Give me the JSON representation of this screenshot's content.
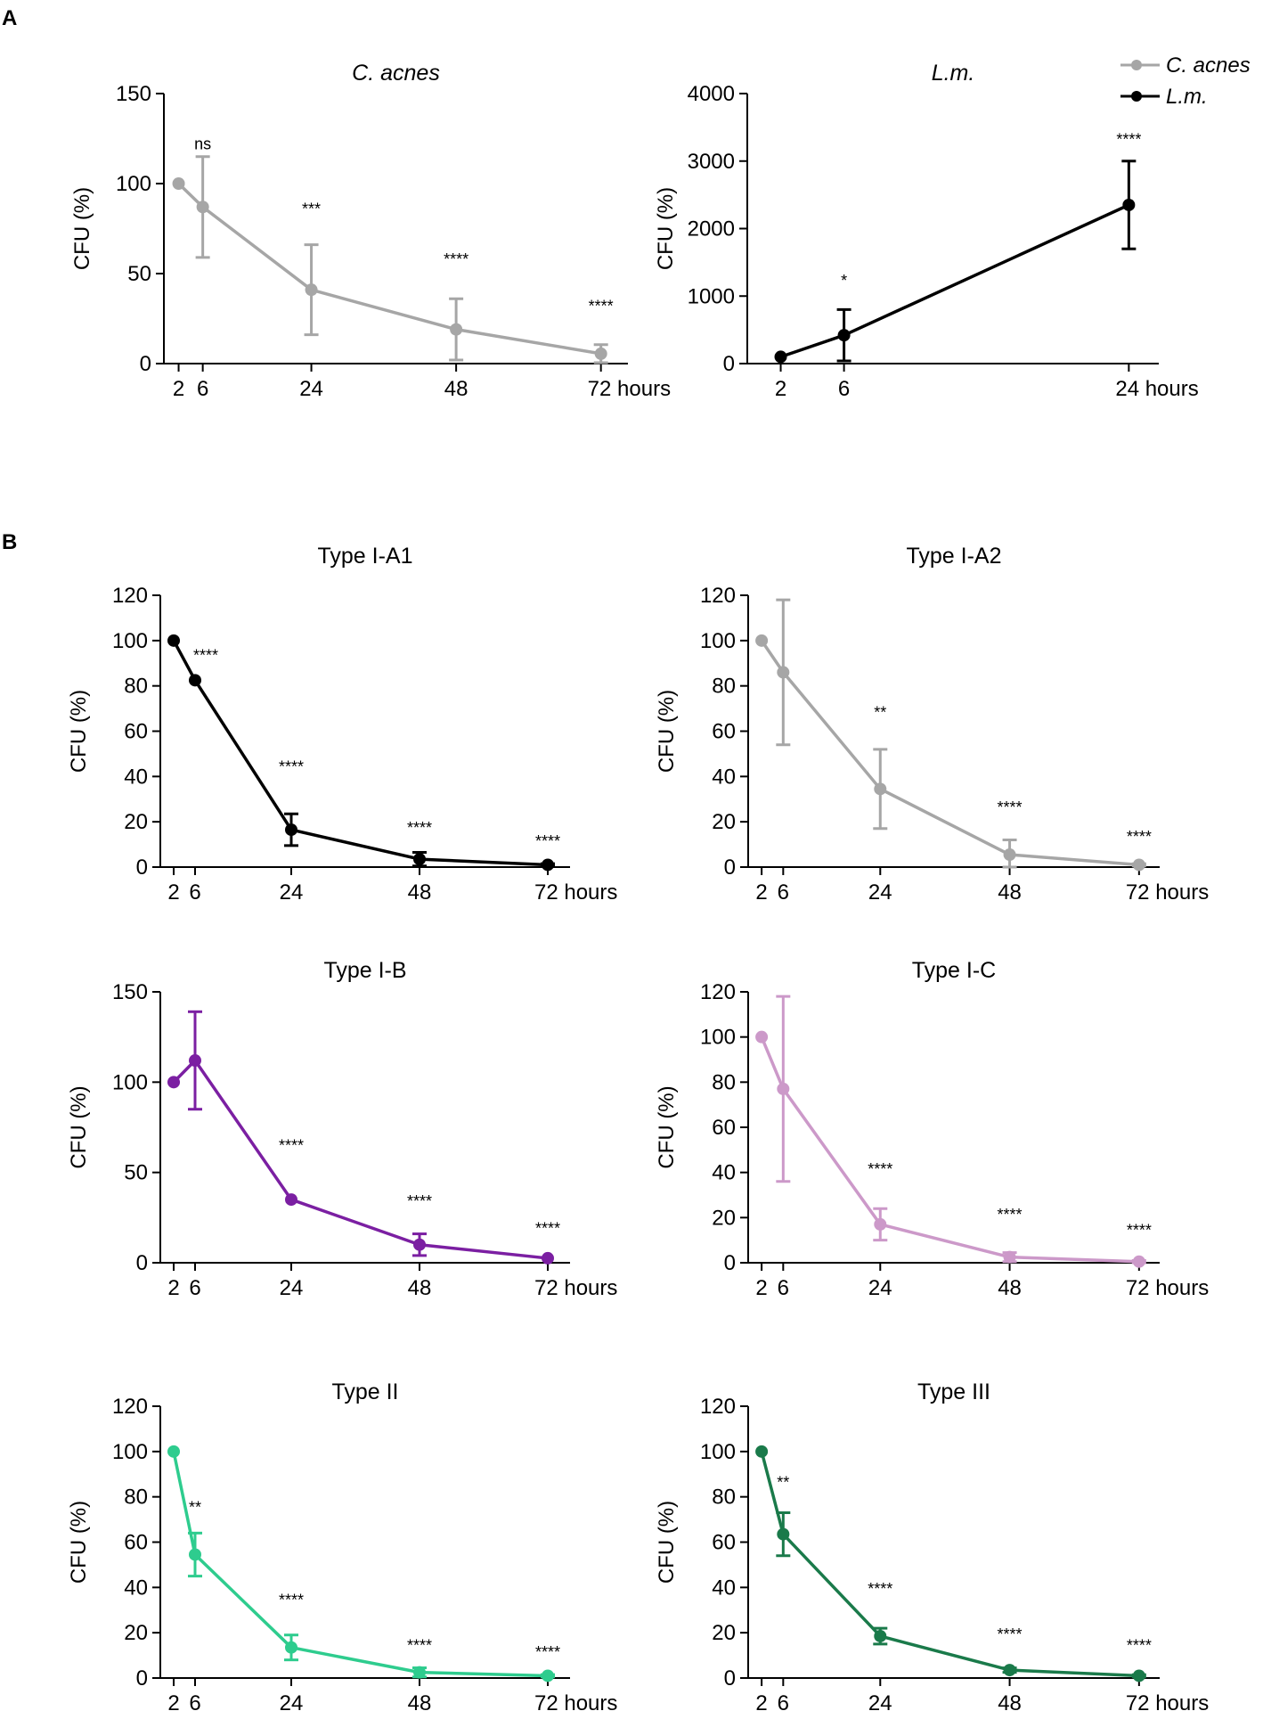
{
  "panel_labels": [
    "A",
    "B"
  ],
  "legend": {
    "entries": [
      {
        "label": "C. acnes",
        "color": "#a6a6a6"
      },
      {
        "label": "L.m.",
        "color": "#000000"
      }
    ]
  },
  "chart_data": [
    {
      "type": "line",
      "panel": "A",
      "title": "C. acnes",
      "title_italic": true,
      "ylabel": "CFU (%)",
      "xlabel": "",
      "xlim": [
        0,
        75
      ],
      "ylim": [
        0,
        150
      ],
      "x": [
        2,
        6,
        24,
        48,
        72
      ],
      "xticks": [
        2,
        6,
        24,
        48,
        72
      ],
      "xtick_labels": [
        "2",
        "6",
        "24",
        "48",
        "72 hours"
      ],
      "yticks": [
        0,
        50,
        100,
        150
      ],
      "ytick_labels": [
        "0",
        "50",
        "100",
        "150"
      ],
      "series": [
        {
          "name": "C. acnes",
          "color": "#a6a6a6",
          "values": [
            100,
            87,
            41,
            19,
            5.5
          ],
          "errors": [
            0,
            28,
            25,
            17,
            5
          ]
        }
      ],
      "annotations": [
        {
          "x": 6,
          "y": 119,
          "text": "ns"
        },
        {
          "x": 24,
          "y": 83,
          "text": "***"
        },
        {
          "x": 48,
          "y": 55,
          "text": "****"
        },
        {
          "x": 72,
          "y": 29,
          "text": "****"
        }
      ]
    },
    {
      "type": "line",
      "panel": "A",
      "title": "L.m.",
      "title_italic": true,
      "ylabel": "CFU (%)",
      "xlabel": "",
      "xlim": [
        0,
        25.5
      ],
      "ylim": [
        0,
        4000
      ],
      "x": [
        2,
        6,
        24
      ],
      "xticks": [
        2,
        6,
        24
      ],
      "xtick_labels": [
        "2",
        "6",
        "24 hours"
      ],
      "yticks": [
        0,
        1000,
        2000,
        3000,
        4000
      ],
      "ytick_labels": [
        "0",
        "1000",
        "2000",
        "3000",
        "4000"
      ],
      "series": [
        {
          "name": "L.m.",
          "color": "#000000",
          "values": [
            100,
            420,
            2350
          ],
          "errors": [
            0,
            380,
            650
          ]
        }
      ],
      "annotations": [
        {
          "x": 6,
          "y": 1150,
          "text": "*"
        },
        {
          "x": 24,
          "y": 3240,
          "text": "****"
        }
      ]
    },
    {
      "type": "line",
      "panel": "B",
      "title": "Type I-A1",
      "title_italic": false,
      "ylabel": "CFU (%)",
      "xlabel": "",
      "xlim": [
        0,
        75
      ],
      "ylim": [
        0,
        120
      ],
      "x": [
        2,
        6,
        24,
        48,
        72
      ],
      "xticks": [
        2,
        6,
        24,
        48,
        72
      ],
      "xtick_labels": [
        "2",
        "6",
        "24",
        "48",
        "72 hours"
      ],
      "yticks": [
        0,
        20,
        40,
        60,
        80,
        100,
        120
      ],
      "ytick_labels": [
        "0",
        "20",
        "40",
        "60",
        "80",
        "100",
        "120"
      ],
      "series": [
        {
          "name": "Type I-A1",
          "color": "#000000",
          "values": [
            100,
            82.5,
            16.5,
            3.5,
            1
          ],
          "errors": [
            0,
            0,
            7,
            3,
            0.5
          ]
        }
      ],
      "annotations": [
        {
          "x": 8,
          "y": 91,
          "text": "****"
        },
        {
          "x": 24,
          "y": 42,
          "text": "****"
        },
        {
          "x": 48,
          "y": 15,
          "text": "****"
        },
        {
          "x": 72,
          "y": 9,
          "text": "****"
        }
      ]
    },
    {
      "type": "line",
      "panel": "B",
      "title": "Type I-A2",
      "title_italic": false,
      "ylabel": "CFU (%)",
      "xlabel": "",
      "xlim": [
        0,
        75
      ],
      "ylim": [
        0,
        120
      ],
      "x": [
        2,
        6,
        24,
        48,
        72
      ],
      "xticks": [
        2,
        6,
        24,
        48,
        72
      ],
      "xtick_labels": [
        "2",
        "6",
        "24",
        "48",
        "72 hours"
      ],
      "yticks": [
        0,
        20,
        40,
        60,
        80,
        100,
        120
      ],
      "ytick_labels": [
        "0",
        "20",
        "40",
        "60",
        "80",
        "100",
        "120"
      ],
      "series": [
        {
          "name": "Type I-A2",
          "color": "#a6a6a6",
          "values": [
            100,
            86,
            34.5,
            5.5,
            1
          ],
          "errors": [
            0,
            32,
            17.5,
            6.5,
            0.5
          ]
        }
      ],
      "annotations": [
        {
          "x": 24,
          "y": 66,
          "text": "**"
        },
        {
          "x": 48,
          "y": 24,
          "text": "****"
        },
        {
          "x": 72,
          "y": 11,
          "text": "****"
        }
      ]
    },
    {
      "type": "line",
      "panel": "B",
      "title": "Type I-B",
      "title_italic": false,
      "ylabel": "CFU (%)",
      "xlabel": "",
      "xlim": [
        0,
        75
      ],
      "ylim": [
        0,
        150
      ],
      "x": [
        2,
        6,
        24,
        48,
        72
      ],
      "xticks": [
        2,
        6,
        24,
        48,
        72
      ],
      "xtick_labels": [
        "2",
        "6",
        "24",
        "48",
        "72 hours"
      ],
      "yticks": [
        0,
        50,
        100,
        150
      ],
      "ytick_labels": [
        "0",
        "50",
        "100",
        "150"
      ],
      "series": [
        {
          "name": "Type I-B",
          "color": "#7b1fa2",
          "values": [
            100,
            112,
            35,
            10,
            2.5
          ],
          "errors": [
            0,
            27,
            0,
            6,
            0
          ]
        }
      ],
      "annotations": [
        {
          "x": 24,
          "y": 62,
          "text": "****"
        },
        {
          "x": 48,
          "y": 31,
          "text": "****"
        },
        {
          "x": 72,
          "y": 16,
          "text": "****"
        }
      ]
    },
    {
      "type": "line",
      "panel": "B",
      "title": "Type I-C",
      "title_italic": false,
      "ylabel": "CFU (%)",
      "xlabel": "",
      "xlim": [
        0,
        75
      ],
      "ylim": [
        0,
        120
      ],
      "x": [
        2,
        6,
        24,
        48,
        72
      ],
      "xticks": [
        2,
        6,
        24,
        48,
        72
      ],
      "xtick_labels": [
        "2",
        "6",
        "24",
        "48",
        "72 hours"
      ],
      "yticks": [
        0,
        20,
        40,
        60,
        80,
        100,
        120
      ],
      "ytick_labels": [
        "0",
        "20",
        "40",
        "60",
        "80",
        "100",
        "120"
      ],
      "series": [
        {
          "name": "Type I-C",
          "color": "#cc99c9",
          "values": [
            100,
            77,
            17,
            2.5,
            0.5
          ],
          "errors": [
            0,
            41,
            7,
            2,
            0.5
          ]
        }
      ],
      "annotations": [
        {
          "x": 24,
          "y": 39,
          "text": "****"
        },
        {
          "x": 48,
          "y": 19,
          "text": "****"
        },
        {
          "x": 72,
          "y": 12,
          "text": "****"
        }
      ]
    },
    {
      "type": "line",
      "panel": "B",
      "title": "Type II",
      "title_italic": false,
      "ylabel": "CFU (%)",
      "xlabel": "",
      "xlim": [
        0,
        75
      ],
      "ylim": [
        0,
        120
      ],
      "x": [
        2,
        6,
        24,
        48,
        72
      ],
      "xticks": [
        2,
        6,
        24,
        48,
        72
      ],
      "xtick_labels": [
        "2",
        "6",
        "24",
        "48",
        "72 hours"
      ],
      "yticks": [
        0,
        20,
        40,
        60,
        80,
        100,
        120
      ],
      "ytick_labels": [
        "0",
        "20",
        "40",
        "60",
        "80",
        "100",
        "120"
      ],
      "series": [
        {
          "name": "Type II",
          "color": "#2ecc8e",
          "values": [
            100,
            54.5,
            13.5,
            2.5,
            1
          ],
          "errors": [
            0,
            9.5,
            5.5,
            2,
            0.5
          ]
        }
      ],
      "annotations": [
        {
          "x": 6,
          "y": 73,
          "text": "**"
        },
        {
          "x": 24,
          "y": 32,
          "text": "****"
        },
        {
          "x": 48,
          "y": 12,
          "text": "****"
        },
        {
          "x": 72,
          "y": 9,
          "text": "****"
        }
      ]
    },
    {
      "type": "line",
      "panel": "B",
      "title": "Type III",
      "title_italic": false,
      "ylabel": "CFU (%)",
      "xlabel": "",
      "xlim": [
        0,
        75
      ],
      "ylim": [
        0,
        120
      ],
      "x": [
        2,
        6,
        24,
        48,
        72
      ],
      "xticks": [
        2,
        6,
        24,
        48,
        72
      ],
      "xtick_labels": [
        "2",
        "6",
        "24",
        "48",
        "72 hours"
      ],
      "yticks": [
        0,
        20,
        40,
        60,
        80,
        100,
        120
      ],
      "ytick_labels": [
        "0",
        "20",
        "40",
        "60",
        "80",
        "100",
        "120"
      ],
      "series": [
        {
          "name": "Type III",
          "color": "#1a7a4a",
          "values": [
            100,
            63.5,
            18.5,
            3.5,
            1
          ],
          "errors": [
            0,
            9.5,
            3.5,
            1,
            0.5
          ]
        }
      ],
      "annotations": [
        {
          "x": 6,
          "y": 84,
          "text": "**"
        },
        {
          "x": 24,
          "y": 37,
          "text": "****"
        },
        {
          "x": 48,
          "y": 17,
          "text": "****"
        },
        {
          "x": 72,
          "y": 12,
          "text": "****"
        }
      ]
    }
  ]
}
